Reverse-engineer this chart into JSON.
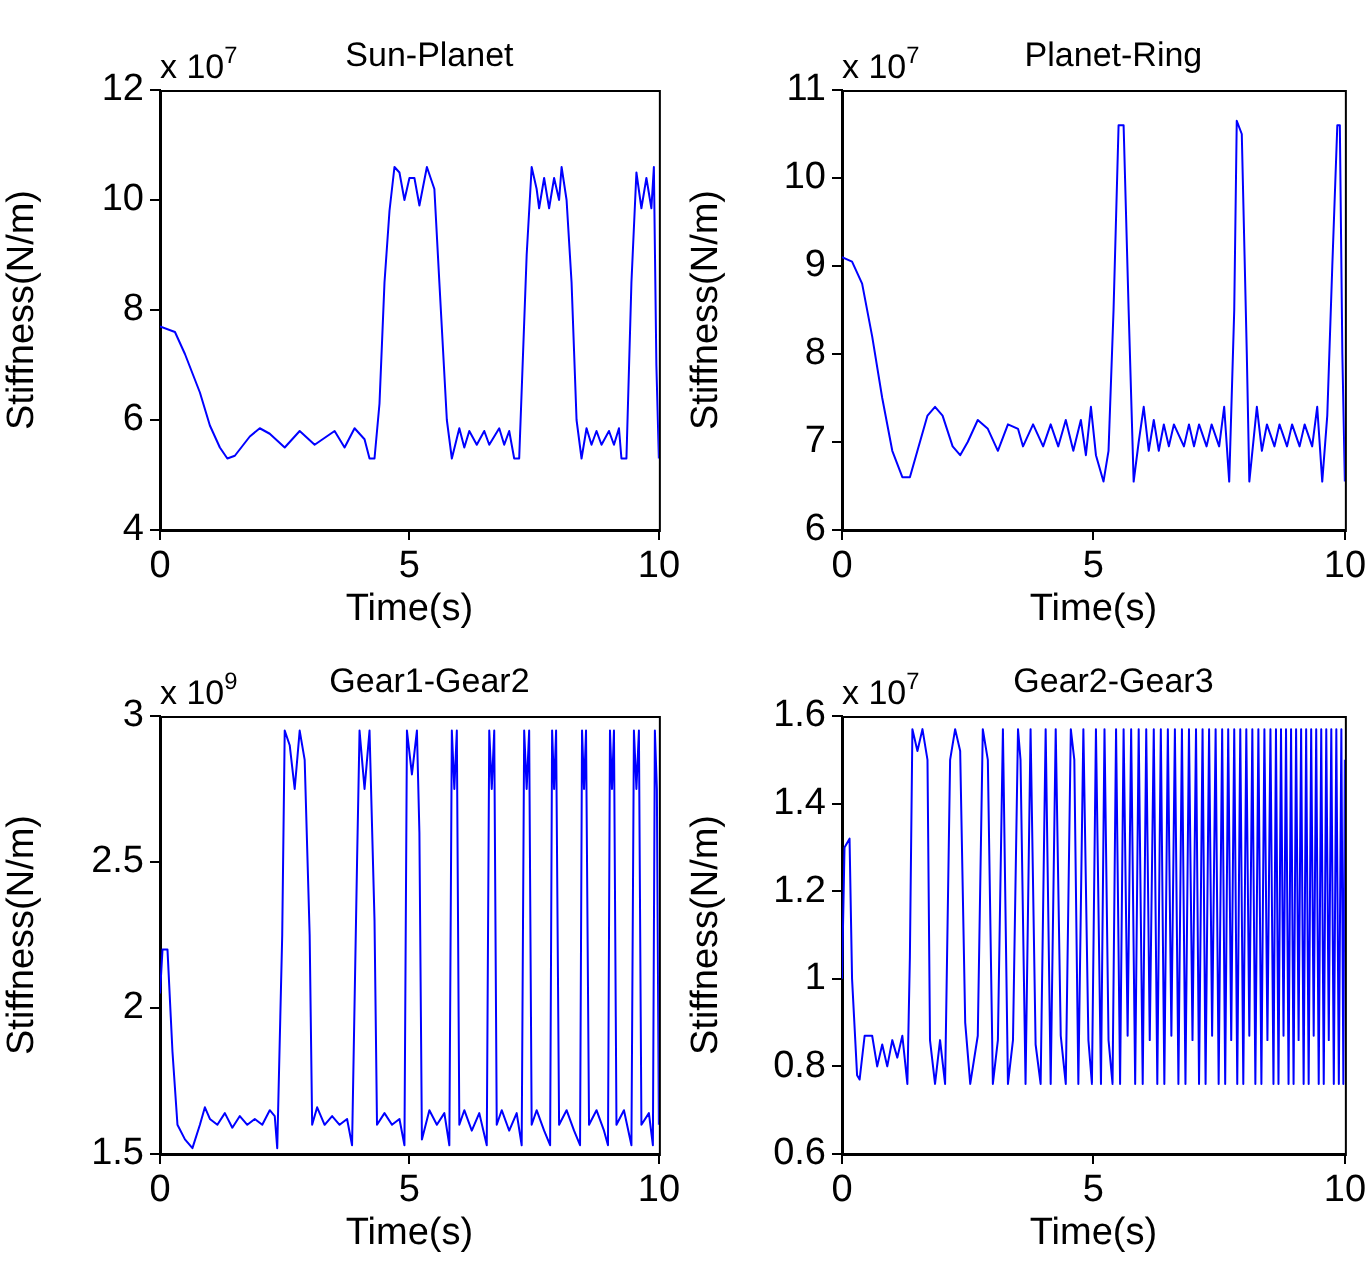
{
  "chart_data": [
    {
      "type": "line",
      "title": "Sun-Planet",
      "xlabel": "Time(s)",
      "ylabel": "Stiffness(N/m)",
      "annotations": [
        "x 10$^{7}$"
      ],
      "color": "#0000ff",
      "xlim": [
        0,
        10
      ],
      "ylim": [
        4,
        12
      ],
      "xticks": [
        0,
        5,
        10
      ],
      "yticks": [
        4,
        6,
        8,
        10,
        12
      ],
      "grid": false,
      "x": [
        0,
        0.3,
        0.5,
        0.8,
        1.0,
        1.2,
        1.35,
        1.5,
        1.8,
        2.0,
        2.2,
        2.5,
        2.8,
        3.1,
        3.5,
        3.7,
        3.9,
        4.1,
        4.2,
        4.3,
        4.4,
        4.5,
        4.6,
        4.7,
        4.8,
        4.9,
        5.0,
        5.1,
        5.2,
        5.35,
        5.5,
        5.6,
        5.75,
        5.85,
        6.0,
        6.1,
        6.2,
        6.35,
        6.5,
        6.6,
        6.8,
        6.9,
        7.0,
        7.1,
        7.2,
        7.35,
        7.45,
        7.55,
        7.6,
        7.7,
        7.8,
        7.9,
        8.0,
        8.05,
        8.15,
        8.25,
        8.35,
        8.45,
        8.55,
        8.65,
        8.75,
        8.85,
        9.0,
        9.1,
        9.2,
        9.25,
        9.35,
        9.45,
        9.55,
        9.65,
        9.75,
        9.85,
        9.9,
        9.95,
        10
      ],
      "values": [
        7.7,
        7.6,
        7.2,
        6.5,
        5.9,
        5.5,
        5.3,
        5.35,
        5.7,
        5.85,
        5.75,
        5.5,
        5.8,
        5.55,
        5.8,
        5.5,
        5.85,
        5.65,
        5.3,
        5.3,
        6.3,
        8.5,
        9.8,
        10.6,
        10.5,
        10.0,
        10.4,
        10.4,
        9.9,
        10.6,
        10.2,
        8.5,
        6.0,
        5.3,
        5.85,
        5.5,
        5.8,
        5.55,
        5.8,
        5.55,
        5.85,
        5.55,
        5.8,
        5.3,
        5.3,
        9.0,
        10.6,
        10.2,
        9.85,
        10.4,
        9.85,
        10.4,
        10.0,
        10.6,
        10.0,
        8.5,
        6.0,
        5.3,
        5.85,
        5.55,
        5.8,
        5.55,
        5.8,
        5.55,
        5.85,
        5.3,
        5.3,
        8.5,
        10.5,
        9.85,
        10.4,
        9.85,
        10.6,
        7.0,
        5.3
      ]
    },
    {
      "type": "line",
      "title": "Planet-Ring",
      "xlabel": "Time(s)",
      "ylabel": "Stiffness(N/m)",
      "annotations": [
        "x 10$^{7}$"
      ],
      "color": "#0000ff",
      "xlim": [
        0,
        10
      ],
      "ylim": [
        6,
        11
      ],
      "xticks": [
        0,
        5,
        10
      ],
      "yticks": [
        6,
        7,
        8,
        9,
        10,
        11
      ],
      "grid": false,
      "x": [
        0,
        0.2,
        0.4,
        0.6,
        0.8,
        1.0,
        1.2,
        1.35,
        1.5,
        1.7,
        1.85,
        2.0,
        2.2,
        2.35,
        2.5,
        2.7,
        2.9,
        3.1,
        3.3,
        3.5,
        3.6,
        3.8,
        4.0,
        4.15,
        4.3,
        4.45,
        4.6,
        4.75,
        4.85,
        4.95,
        5.05,
        5.2,
        5.3,
        5.4,
        5.5,
        5.6,
        5.7,
        5.8,
        5.9,
        6.0,
        6.1,
        6.2,
        6.3,
        6.4,
        6.5,
        6.6,
        6.8,
        6.9,
        7.0,
        7.1,
        7.25,
        7.35,
        7.5,
        7.6,
        7.7,
        7.8,
        7.85,
        7.95,
        8.05,
        8.1,
        8.25,
        8.35,
        8.45,
        8.6,
        8.7,
        8.85,
        8.95,
        9.1,
        9.2,
        9.35,
        9.45,
        9.55,
        9.65,
        9.75,
        9.85,
        9.9,
        9.95,
        10
      ],
      "values": [
        9.1,
        9.05,
        8.8,
        8.2,
        7.5,
        6.9,
        6.6,
        6.6,
        6.9,
        7.3,
        7.4,
        7.3,
        6.95,
        6.85,
        7.0,
        7.25,
        7.15,
        6.9,
        7.2,
        7.15,
        6.95,
        7.2,
        6.95,
        7.2,
        6.95,
        7.25,
        6.9,
        7.25,
        6.85,
        7.4,
        6.85,
        6.55,
        6.9,
        8.5,
        10.6,
        10.6,
        8.5,
        6.55,
        7.0,
        7.4,
        6.9,
        7.25,
        6.9,
        7.2,
        6.95,
        7.2,
        6.95,
        7.2,
        6.95,
        7.2,
        6.95,
        7.2,
        6.95,
        7.4,
        6.55,
        8.5,
        10.65,
        10.5,
        8.0,
        6.55,
        7.4,
        6.9,
        7.2,
        6.95,
        7.2,
        6.95,
        7.2,
        6.95,
        7.2,
        6.95,
        7.4,
        6.55,
        7.3,
        9.0,
        10.6,
        10.6,
        8.0,
        6.55
      ]
    },
    {
      "type": "line",
      "title": "Gear1-Gear2",
      "xlabel": "Time(s)",
      "ylabel": "Stiffness(N/m)",
      "annotations": [
        "x 10$^{9}$"
      ],
      "color": "#0000ff",
      "xlim": [
        0,
        10
      ],
      "ylim": [
        1.5,
        3
      ],
      "xticks": [
        0,
        5,
        10
      ],
      "yticks": [
        1.5,
        2,
        2.5,
        3
      ],
      "grid": false,
      "x": [
        0,
        0.05,
        0.15,
        0.25,
        0.35,
        0.5,
        0.65,
        0.8,
        0.9,
        1.0,
        1.15,
        1.3,
        1.45,
        1.6,
        1.75,
        1.9,
        2.05,
        2.2,
        2.3,
        2.35,
        2.45,
        2.5,
        2.6,
        2.7,
        2.8,
        2.9,
        3.0,
        3.05,
        3.15,
        3.3,
        3.45,
        3.6,
        3.75,
        3.85,
        3.95,
        4.0,
        4.1,
        4.2,
        4.3,
        4.35,
        4.5,
        4.65,
        4.8,
        4.9,
        4.95,
        5.05,
        5.15,
        5.2,
        5.25,
        5.4,
        5.55,
        5.7,
        5.8,
        5.85,
        5.9,
        5.95,
        6.0,
        6.1,
        6.25,
        6.4,
        6.55,
        6.6,
        6.65,
        6.7,
        6.75,
        6.85,
        7.0,
        7.15,
        7.25,
        7.3,
        7.35,
        7.4,
        7.45,
        7.55,
        7.7,
        7.82,
        7.86,
        7.9,
        7.94,
        8.0,
        8.15,
        8.3,
        8.42,
        8.46,
        8.5,
        8.54,
        8.6,
        8.75,
        8.9,
        8.98,
        9.02,
        9.06,
        9.1,
        9.15,
        9.3,
        9.45,
        9.5,
        9.55,
        9.6,
        9.65,
        9.8,
        9.88,
        9.92,
        9.96,
        10
      ],
      "values": [
        2.05,
        2.2,
        2.2,
        1.85,
        1.6,
        1.55,
        1.52,
        1.6,
        1.66,
        1.62,
        1.6,
        1.64,
        1.59,
        1.63,
        1.6,
        1.62,
        1.6,
        1.65,
        1.63,
        1.52,
        2.25,
        2.95,
        2.9,
        2.75,
        2.95,
        2.85,
        2.25,
        1.6,
        1.66,
        1.6,
        1.63,
        1.6,
        1.62,
        1.53,
        2.5,
        2.95,
        2.75,
        2.95,
        2.3,
        1.6,
        1.64,
        1.6,
        1.62,
        1.53,
        2.95,
        2.8,
        2.95,
        2.6,
        1.55,
        1.65,
        1.6,
        1.64,
        1.53,
        2.95,
        2.75,
        2.95,
        1.6,
        1.65,
        1.58,
        1.64,
        1.53,
        2.95,
        2.75,
        2.95,
        1.6,
        1.65,
        1.58,
        1.64,
        1.53,
        2.95,
        2.75,
        2.95,
        1.6,
        1.65,
        1.58,
        1.53,
        2.95,
        2.75,
        2.95,
        1.6,
        1.65,
        1.58,
        1.53,
        2.95,
        2.75,
        2.95,
        1.6,
        1.65,
        1.58,
        1.53,
        2.95,
        2.75,
        2.95,
        1.6,
        1.65,
        1.53,
        2.95,
        2.75,
        2.95,
        1.6,
        1.64,
        1.53,
        2.95,
        2.75,
        1.6
      ]
    },
    {
      "type": "line",
      "title": "Gear2-Gear3",
      "xlabel": "Time(s)",
      "ylabel": "Stiffness(N/m)",
      "annotations": [
        "x 10$^{7}$"
      ],
      "color": "#0000ff",
      "xlim": [
        0,
        10
      ],
      "ylim": [
        0.6,
        1.6
      ],
      "xticks": [
        0,
        5,
        10
      ],
      "yticks": [
        0.6,
        0.8,
        1,
        1.2,
        1.4,
        1.6
      ],
      "grid": false,
      "x": [
        0,
        0.05,
        0.15,
        0.2,
        0.3,
        0.35,
        0.45,
        0.6,
        0.7,
        0.8,
        0.9,
        1.0,
        1.1,
        1.2,
        1.3,
        1.35,
        1.4,
        1.5,
        1.6,
        1.7,
        1.75,
        1.85,
        1.95,
        2.05,
        2.15,
        2.25,
        2.35,
        2.45,
        2.55,
        2.7,
        2.8,
        2.9,
        3.0,
        3.1,
        3.2,
        3.3,
        3.4,
        3.5,
        3.55,
        3.65,
        3.75,
        3.85,
        3.95,
        4.05,
        4.15,
        4.25,
        4.35,
        4.45,
        4.55,
        4.62,
        4.7,
        4.8,
        4.9,
        4.97,
        5.05,
        5.15,
        5.22,
        5.3,
        5.38,
        5.45,
        5.53,
        5.6,
        5.68,
        5.75,
        5.83,
        5.9,
        5.98,
        6.05,
        6.12,
        6.2,
        6.27,
        6.34,
        6.41,
        6.48,
        6.55,
        6.62,
        6.69,
        6.76,
        6.83,
        6.9,
        6.97,
        7.04,
        7.1,
        7.17,
        7.23,
        7.3,
        7.36,
        7.43,
        7.49,
        7.56,
        7.62,
        7.68,
        7.74,
        7.8,
        7.86,
        7.92,
        7.98,
        8.04,
        8.1,
        8.16,
        8.22,
        8.28,
        8.34,
        8.4,
        8.46,
        8.52,
        8.58,
        8.63,
        8.68,
        8.73,
        8.78,
        8.83,
        8.88,
        8.93,
        8.98,
        9.03,
        9.08,
        9.13,
        9.18,
        9.23,
        9.28,
        9.33,
        9.38,
        9.43,
        9.48,
        9.53,
        9.58,
        9.63,
        9.68,
        9.73,
        9.78,
        9.83,
        9.88,
        9.93,
        9.97,
        10
      ],
      "values": [
        1.0,
        1.3,
        1.32,
        1.0,
        0.78,
        0.77,
        0.87,
        0.87,
        0.8,
        0.85,
        0.8,
        0.86,
        0.82,
        0.87,
        0.76,
        1.05,
        1.57,
        1.52,
        1.57,
        1.5,
        0.86,
        0.76,
        0.86,
        0.76,
        1.5,
        1.57,
        1.52,
        0.9,
        0.76,
        0.87,
        1.57,
        1.5,
        0.76,
        0.86,
        1.57,
        0.76,
        0.86,
        1.57,
        1.5,
        0.76,
        1.57,
        0.85,
        0.76,
        1.57,
        0.76,
        1.57,
        0.87,
        0.76,
        1.57,
        1.5,
        0.76,
        1.57,
        0.86,
        0.76,
        1.57,
        0.76,
        1.57,
        0.86,
        0.76,
        1.57,
        0.76,
        1.57,
        0.87,
        1.57,
        0.76,
        1.57,
        0.76,
        1.57,
        0.86,
        1.57,
        0.76,
        1.57,
        0.76,
        1.57,
        0.87,
        1.57,
        0.76,
        1.57,
        0.76,
        1.57,
        0.86,
        1.57,
        0.76,
        1.57,
        0.76,
        1.57,
        0.87,
        1.57,
        0.76,
        1.57,
        0.76,
        1.57,
        0.86,
        1.57,
        0.76,
        1.57,
        0.76,
        1.57,
        0.87,
        1.57,
        0.76,
        1.57,
        0.76,
        1.57,
        0.86,
        1.57,
        0.76,
        1.57,
        0.76,
        1.57,
        0.87,
        1.57,
        0.76,
        1.57,
        0.76,
        1.57,
        0.86,
        1.57,
        0.76,
        1.57,
        0.76,
        1.57,
        0.87,
        1.57,
        0.76,
        1.57,
        0.76,
        1.57,
        0.86,
        1.57,
        0.76,
        1.57,
        0.76,
        1.57,
        0.76,
        1.5
      ]
    }
  ]
}
